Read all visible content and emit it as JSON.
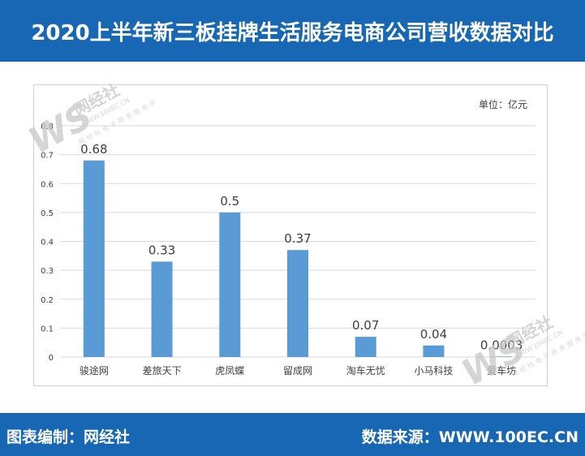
{
  "header": {
    "title": "2020上半年新三板挂牌生活服务电商公司营收数据对比"
  },
  "footer": {
    "editor": "图表编制：网经社",
    "source": "数据来源：WWW.100EC.CN"
  },
  "watermark": {
    "logo_letters": "WS",
    "brand": "网经社",
    "url": "WWW.100EC.CN",
    "tagline": "网经社电子商务服务平台"
  },
  "colors": {
    "header_bg": "#1767b4",
    "bar": "#5b9bd5",
    "grid": "#d9d9d9",
    "axis_text": "#404040",
    "label_text": "#404040"
  },
  "chart_data": {
    "type": "bar",
    "unit_label": "单位：亿元",
    "categories": [
      "骏途网",
      "差旅天下",
      "虎凤蝶",
      "留成网",
      "淘车无忧",
      "小马科技",
      "爱车坊"
    ],
    "values": [
      0.68,
      0.33,
      0.5,
      0.37,
      0.07,
      0.04,
      0.0003
    ],
    "value_labels": [
      "0.68",
      "0.33",
      "0.5",
      "0.37",
      "0.07",
      "0.04",
      "0.0003"
    ],
    "ylim": [
      0,
      0.8
    ],
    "yticks": [
      "0",
      "0.1",
      "0.2",
      "0.3",
      "0.4",
      "0.5",
      "0.6",
      "0.7",
      "0.8"
    ],
    "grid": true,
    "legend": "none"
  }
}
